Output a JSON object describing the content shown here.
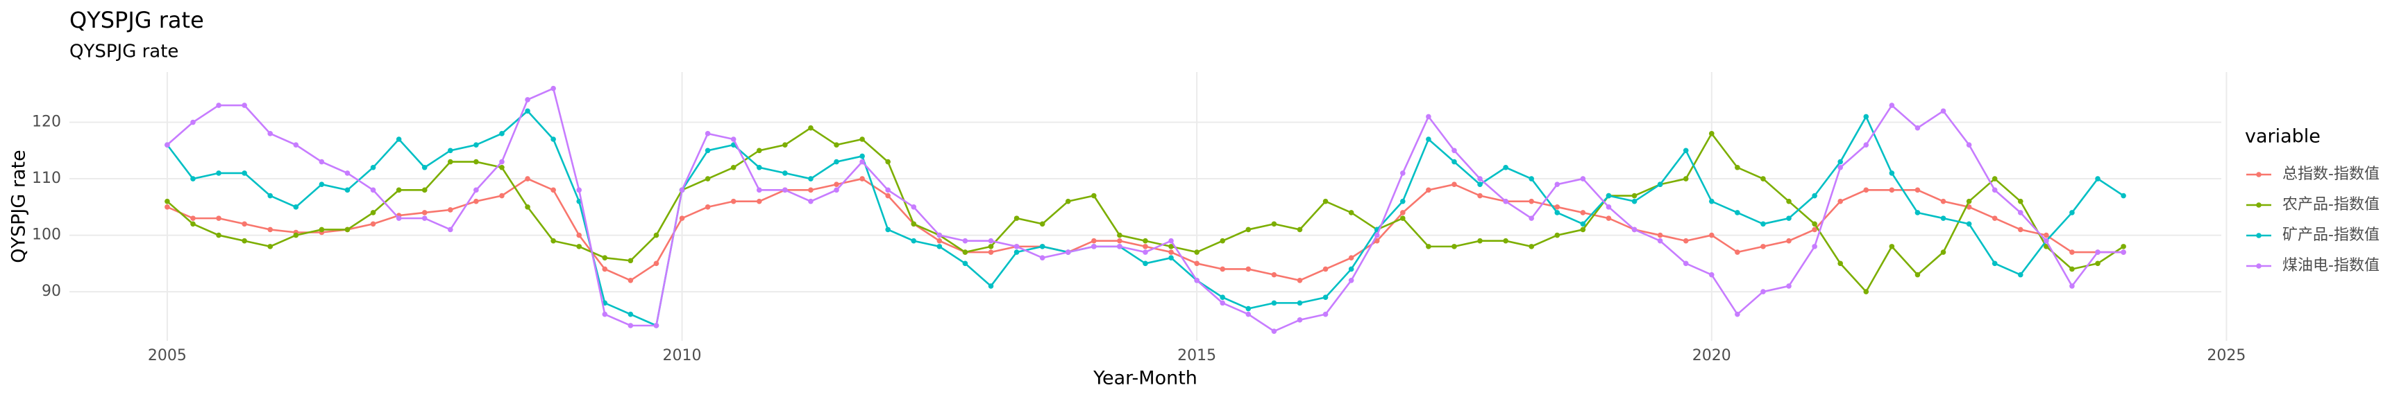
{
  "chart_data": {
    "type": "line",
    "title": "QYSPJG rate",
    "subtitle": "QYSPJG rate",
    "x_label": "Year-Month",
    "y_label": "QYSPJG rate",
    "legend_title": "variable",
    "legend_position": "right",
    "grid": true,
    "xlim": [
      2004.05,
      2024.95
    ],
    "xticks": [
      2005,
      2010,
      2015,
      2020,
      2025
    ],
    "ylim": [
      81.3,
      128.9
    ],
    "yticks": [
      90,
      100,
      110,
      120
    ],
    "x": [
      2005,
      2005.25,
      2005.5,
      2005.75,
      2006,
      2006.25,
      2006.5,
      2006.75,
      2007,
      2007.25,
      2007.5,
      2007.75,
      2008,
      2008.25,
      2008.5,
      2008.75,
      2009,
      2009.25,
      2009.5,
      2009.75,
      2010,
      2010.25,
      2010.5,
      2010.75,
      2011,
      2011.25,
      2011.5,
      2011.75,
      2012,
      2012.25,
      2012.5,
      2012.75,
      2013,
      2013.25,
      2013.5,
      2013.75,
      2014,
      2014.25,
      2014.5,
      2014.75,
      2015,
      2015.25,
      2015.5,
      2015.75,
      2016,
      2016.25,
      2016.5,
      2016.75,
      2017,
      2017.25,
      2017.5,
      2017.75,
      2018,
      2018.25,
      2018.5,
      2018.75,
      2019,
      2019.25,
      2019.5,
      2019.75,
      2020,
      2020.25,
      2020.5,
      2020.75,
      2021,
      2021.25,
      2021.5,
      2021.75,
      2022,
      2022.25,
      2022.5,
      2022.75,
      2023,
      2023.25,
      2023.5,
      2023.75,
      2024
    ],
    "series": [
      {
        "name": "总指数-指数值",
        "color": "#F8766D",
        "values": [
          105,
          103,
          103,
          102,
          101,
          100.5,
          100.5,
          101,
          102,
          103.5,
          104,
          104.5,
          106,
          107,
          110,
          108,
          100,
          94,
          92,
          95,
          103,
          105,
          106,
          106,
          108,
          108,
          109,
          110,
          107,
          102,
          99,
          97,
          97,
          98,
          98,
          97,
          99,
          99,
          98,
          97,
          95,
          94,
          94,
          93,
          92,
          94,
          96,
          99,
          104,
          108,
          109,
          107,
          106,
          106,
          105,
          104,
          103,
          101,
          100,
          99,
          100,
          97,
          98,
          99,
          101,
          106,
          108,
          108,
          108,
          106,
          105,
          103,
          101,
          100,
          97,
          97,
          97
        ]
      },
      {
        "name": "农产品-指数值",
        "color": "#7CAE00",
        "values": [
          106,
          102,
          100,
          99,
          98,
          100,
          101,
          101,
          104,
          108,
          108,
          113,
          113,
          112,
          105,
          99,
          98,
          96,
          95.5,
          100,
          108,
          110,
          112,
          115,
          116,
          119,
          116,
          117,
          113,
          102,
          100,
          97,
          98,
          103,
          102,
          106,
          107,
          100,
          99,
          98,
          97,
          99,
          101,
          102,
          101,
          106,
          104,
          101,
          103,
          98,
          98,
          99,
          99,
          98,
          100,
          101,
          107,
          107,
          109,
          110,
          118,
          112,
          110,
          106,
          102,
          95,
          90,
          98,
          93,
          97,
          106,
          110,
          106,
          98,
          94,
          95,
          98
        ]
      },
      {
        "name": "矿产品-指数值",
        "color": "#00BFC4",
        "values": [
          116,
          110,
          111,
          111,
          107,
          105,
          109,
          108,
          112,
          117,
          112,
          115,
          116,
          118,
          122,
          117,
          106,
          88,
          86,
          84,
          108,
          115,
          116,
          112,
          111,
          110,
          113,
          114,
          101,
          99,
          98,
          95,
          91,
          97,
          98,
          97,
          98,
          98,
          95,
          96,
          92,
          89,
          87,
          88,
          88,
          89,
          94,
          101,
          106,
          117,
          113,
          109,
          112,
          110,
          104,
          102,
          107,
          106,
          109,
          115,
          106,
          104,
          102,
          103,
          107,
          113,
          121,
          111,
          104,
          103,
          102,
          95,
          93,
          99,
          104,
          110,
          107
        ]
      },
      {
        "name": "煤油电-指数值",
        "color": "#C77CFF",
        "values": [
          116,
          120,
          123,
          123,
          118,
          116,
          113,
          111,
          108,
          103,
          103,
          101,
          108,
          113,
          124,
          126,
          108,
          86,
          84,
          84,
          108,
          118,
          117,
          108,
          108,
          106,
          108,
          113,
          108,
          105,
          100,
          99,
          99,
          98,
          96,
          97,
          98,
          98,
          97,
          99,
          92,
          88,
          86,
          83,
          85,
          86,
          92,
          100,
          111,
          121,
          115,
          110,
          106,
          103,
          109,
          110,
          105,
          101,
          99,
          95,
          93,
          86,
          90,
          91,
          98,
          112,
          116,
          123,
          119,
          122,
          116,
          108,
          104,
          99,
          91,
          97,
          97
        ]
      }
    ]
  }
}
